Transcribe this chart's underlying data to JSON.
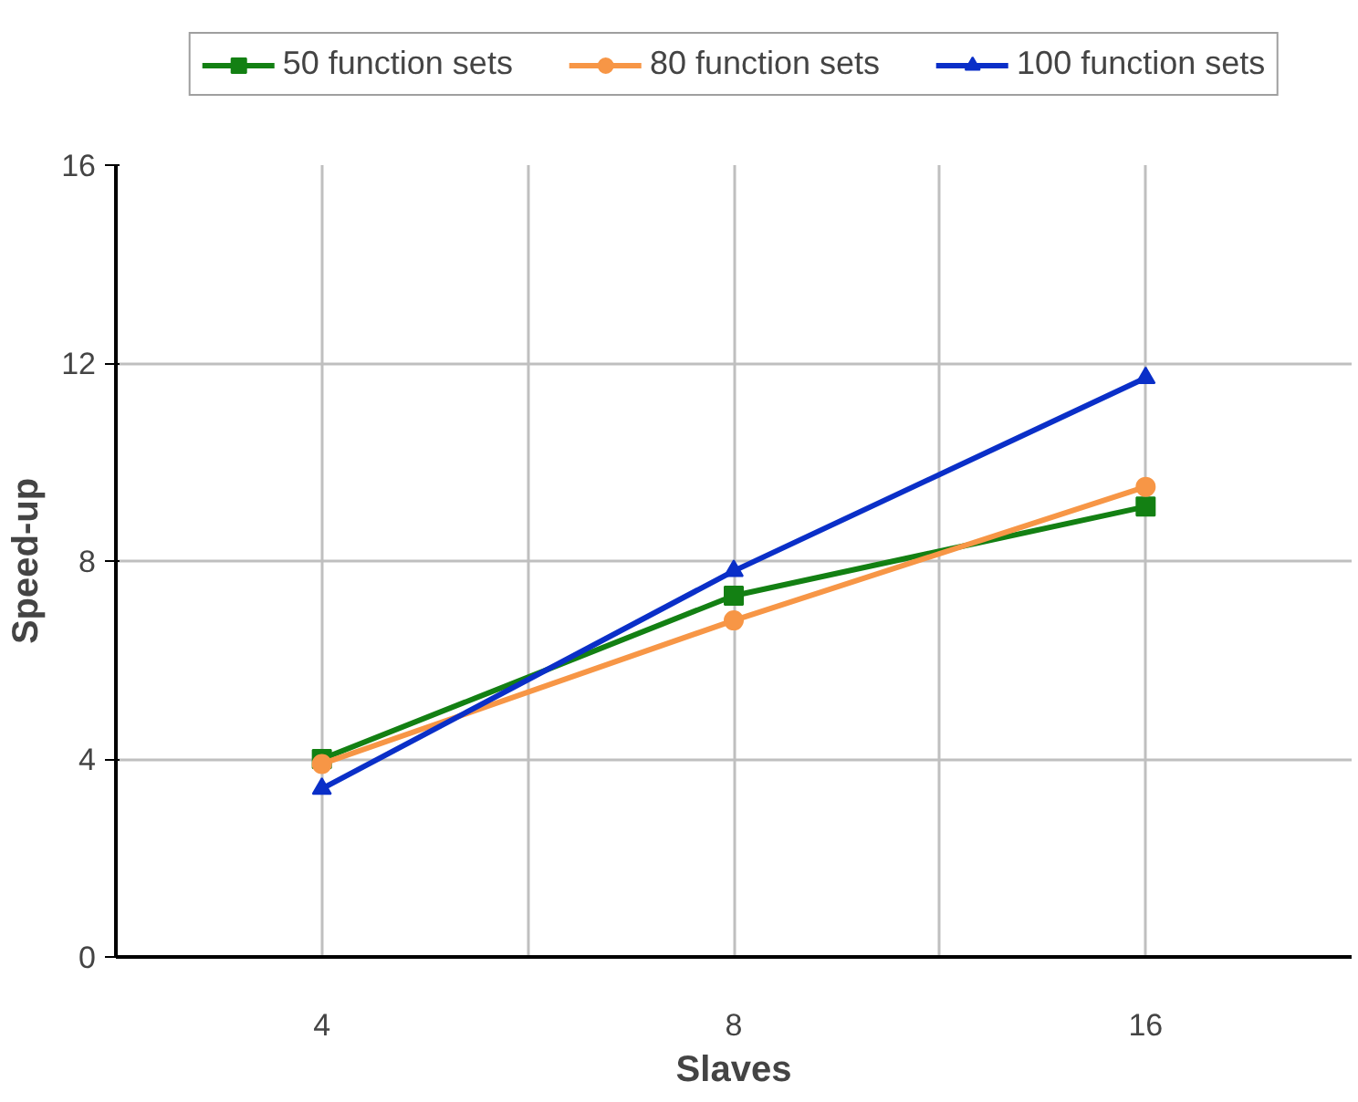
{
  "chart_data": {
    "type": "line",
    "xlabel": "Slaves",
    "ylabel": "Speed-up",
    "categories": [
      "4",
      "8",
      "16"
    ],
    "series": [
      {
        "name": "50 function sets",
        "color": "#138013",
        "marker": "square",
        "values": [
          4.0,
          7.3,
          9.1
        ]
      },
      {
        "name": "80 function sets",
        "color": "#f79646",
        "marker": "circle",
        "values": [
          3.9,
          6.8,
          9.5
        ]
      },
      {
        "name": "100 function sets",
        "color": "#0a2fc8",
        "marker": "triangle",
        "values": [
          3.4,
          7.8,
          11.7
        ]
      }
    ],
    "ylim": [
      0,
      16
    ],
    "yticks": [
      0,
      4,
      8,
      12,
      16
    ],
    "grid": true,
    "legend": "top",
    "line_style": "solid"
  }
}
